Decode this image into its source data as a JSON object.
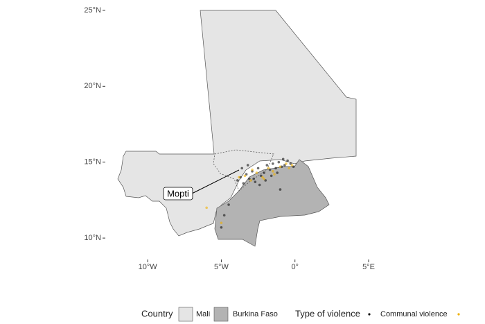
{
  "map": {
    "xlim": [
      -12.5,
      5
    ],
    "ylim": [
      9,
      25.5
    ],
    "xticks": [
      {
        "value": -10,
        "label": "10°W"
      },
      {
        "value": -5,
        "label": "5°W"
      },
      {
        "value": 0,
        "label": "0°"
      },
      {
        "value": 5,
        "label": "5°E"
      }
    ],
    "yticks": [
      {
        "value": 25,
        "label": "25°N"
      },
      {
        "value": 20,
        "label": "20°N"
      },
      {
        "value": 15,
        "label": "15°N"
      },
      {
        "value": 10,
        "label": "10°N"
      }
    ],
    "annotation": "Mopti",
    "series": [
      {
        "name": "Communal violence",
        "color": "#111111",
        "x": [
          -3.9,
          -3.7,
          -3.5,
          -3.3,
          -3.1,
          -2.9,
          -2.7,
          -2.5,
          -2.3,
          -2.1,
          -1.9,
          -1.7,
          -1.5,
          -1.3,
          -1.1,
          -0.9,
          -0.7,
          -0.5,
          -0.3,
          -0.1,
          -3.6,
          -3.2,
          -2.8,
          -2.4,
          -2.0,
          -1.6,
          -1.2,
          -0.8,
          -4.8,
          -5.0,
          -4.5,
          -1.0
        ],
        "y": [
          13.8,
          14.0,
          13.6,
          14.2,
          13.9,
          14.4,
          13.7,
          14.6,
          14.1,
          14.3,
          14.8,
          14.5,
          14.9,
          14.6,
          15.0,
          14.7,
          14.8,
          15.1,
          14.9,
          14.7,
          14.6,
          14.8,
          13.9,
          13.5,
          13.8,
          14.1,
          14.3,
          15.2,
          11.5,
          10.7,
          12.2,
          13.2
        ]
      },
      {
        "color": "#f0b000",
        "x": [
          -3.4,
          -3.0,
          -2.6,
          -2.2,
          -1.8,
          -1.4,
          -1.0,
          -0.6,
          -0.2,
          -2.9,
          -2.1,
          -1.5,
          -0.4,
          -5.0,
          -6.0,
          -3.8
        ],
        "y": [
          14.1,
          13.8,
          14.3,
          14.0,
          14.6,
          14.2,
          14.7,
          14.9,
          14.8,
          14.5,
          13.9,
          14.4,
          14.6,
          11.0,
          12.0,
          14.0
        ]
      }
    ]
  },
  "legend": {
    "country_title": "Country",
    "countries": [
      {
        "name": "Mali",
        "color": "#e5e5e5"
      },
      {
        "name": "Burkina Faso",
        "color": "#b3b3b3"
      }
    ],
    "violence_title": "Type of violence"
  }
}
